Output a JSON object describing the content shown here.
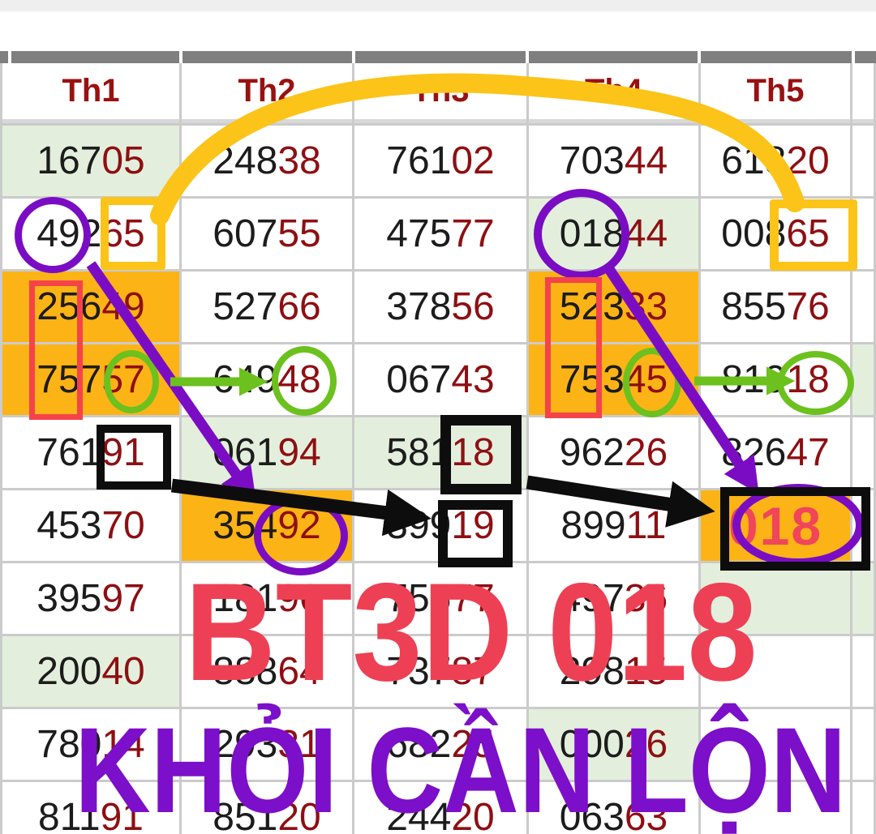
{
  "overlay": {
    "line1": "BT3D 018",
    "line2": "KHỎI CẦN LỘN"
  },
  "colors": {
    "grid_line": "#cbcbcb",
    "header_text": "#991111",
    "digit_black": "#1c1c1c",
    "digit_red": "#8e0f12",
    "cell_green": "#e3efdc",
    "cell_orange": "#fcb316",
    "yellow": "#fcc419",
    "purple": "#7a0dc4",
    "green_shape": "#6cc11e",
    "red_shape": "#f4434a",
    "black_shape": "#0d0d0d",
    "pink_018": "#f0455a",
    "overlay_red": "#ee4054",
    "overlay_purple": "#7c0fc9",
    "top_strip": "#efefef",
    "top_bar": "#7f7f7f"
  },
  "table": {
    "headers": [
      "Th1",
      "Th2",
      "Th3",
      "Th4",
      "Th5",
      ""
    ],
    "rows": [
      {
        "cells": [
          {
            "black": "167",
            "red": "05",
            "bg": "green"
          },
          {
            "black": "248",
            "red": "38",
            "bg": "white"
          },
          {
            "black": "761",
            "red": "02",
            "bg": "white"
          },
          {
            "black": "703",
            "red": "44",
            "bg": "white"
          },
          {
            "black": "618",
            "red": "20",
            "bg": "white"
          },
          {
            "black": "",
            "red": "",
            "bg": "white"
          }
        ]
      },
      {
        "cells": [
          {
            "black": "492",
            "red": "65",
            "bg": "white"
          },
          {
            "black": "607",
            "red": "55",
            "bg": "white"
          },
          {
            "black": "475",
            "red": "77",
            "bg": "white"
          },
          {
            "black": "018",
            "red": "44",
            "bg": "green"
          },
          {
            "black": "008",
            "red": "65",
            "bg": "white"
          },
          {
            "black": "",
            "red": "",
            "bg": "white"
          }
        ]
      },
      {
        "cells": [
          {
            "black": "256",
            "red": "49",
            "bg": "orange"
          },
          {
            "black": "527",
            "red": "66",
            "bg": "white"
          },
          {
            "black": "378",
            "red": "56",
            "bg": "white"
          },
          {
            "black": "523",
            "red": "33",
            "bg": "orange"
          },
          {
            "black": "855",
            "red": "76",
            "bg": "white"
          },
          {
            "black": "",
            "red": "",
            "bg": "white"
          }
        ]
      },
      {
        "cells": [
          {
            "black": "757",
            "red": "57",
            "bg": "orange"
          },
          {
            "black": "649",
            "red": "48",
            "bg": "white"
          },
          {
            "black": "067",
            "red": "43",
            "bg": "white"
          },
          {
            "black": "753",
            "red": "45",
            "bg": "orange"
          },
          {
            "black": "819",
            "red": "18",
            "bg": "white"
          },
          {
            "black": "",
            "red": "",
            "bg": "green"
          }
        ]
      },
      {
        "cells": [
          {
            "black": "761",
            "red": "91",
            "bg": "white"
          },
          {
            "black": "061",
            "red": "94",
            "bg": "green"
          },
          {
            "black": "581",
            "red": "18",
            "bg": "green"
          },
          {
            "black": "962",
            "red": "26",
            "bg": "white"
          },
          {
            "black": "826",
            "red": "47",
            "bg": "white"
          },
          {
            "black": "",
            "red": "",
            "bg": "white"
          }
        ]
      },
      {
        "cells": [
          {
            "black": "453",
            "red": "70",
            "bg": "white"
          },
          {
            "black": "354",
            "red": "92",
            "bg": "orange"
          },
          {
            "black": "399",
            "red": "19",
            "bg": "white"
          },
          {
            "black": "899",
            "red": "11",
            "bg": "white"
          },
          {
            "black": "",
            "red": "018",
            "bg": "orange",
            "style": "big-pink"
          },
          {
            "black": "",
            "red": "",
            "bg": "white"
          }
        ]
      },
      {
        "cells": [
          {
            "black": "395",
            "red": "97",
            "bg": "white"
          },
          {
            "black": "181",
            "red": "96",
            "bg": "white"
          },
          {
            "black": "755",
            "red": "77",
            "bg": "white"
          },
          {
            "black": "497",
            "red": "36",
            "bg": "white"
          },
          {
            "black": "",
            "red": "",
            "bg": "green"
          },
          {
            "black": "",
            "red": "",
            "bg": "green"
          }
        ]
      },
      {
        "cells": [
          {
            "black": "200",
            "red": "40",
            "bg": "green"
          },
          {
            "black": "888",
            "red": "64",
            "bg": "white"
          },
          {
            "black": "737",
            "red": "87",
            "bg": "white"
          },
          {
            "black": "298",
            "red": "15",
            "bg": "white"
          },
          {
            "black": "",
            "red": "",
            "bg": "white"
          },
          {
            "black": "",
            "red": "",
            "bg": "white"
          }
        ]
      },
      {
        "cells": [
          {
            "black": "780",
            "red": "14",
            "bg": "white"
          },
          {
            "black": "293",
            "red": "31",
            "bg": "white"
          },
          {
            "black": "682",
            "red": "25",
            "bg": "white"
          },
          {
            "black": "000",
            "red": "26",
            "bg": "green"
          },
          {
            "black": "",
            "red": "",
            "bg": "white"
          },
          {
            "black": "",
            "red": "",
            "bg": "white"
          }
        ]
      },
      {
        "cells": [
          {
            "black": "811",
            "red": "91",
            "bg": "white"
          },
          {
            "black": "851",
            "red": "20",
            "bg": "white"
          },
          {
            "black": "244",
            "red": "20",
            "bg": "white"
          },
          {
            "black": "063",
            "red": "63",
            "bg": "white"
          },
          {
            "black": "",
            "red": "",
            "bg": "white"
          },
          {
            "black": "",
            "red": "",
            "bg": "white"
          }
        ]
      }
    ]
  },
  "annotations": {
    "highlight_number": "018",
    "circled_values": [
      "492",
      "018",
      "57",
      "48",
      "45",
      "18",
      "492",
      "018"
    ],
    "boxed_values": [
      "65",
      "65",
      "91",
      "18",
      "19",
      "018"
    ]
  }
}
